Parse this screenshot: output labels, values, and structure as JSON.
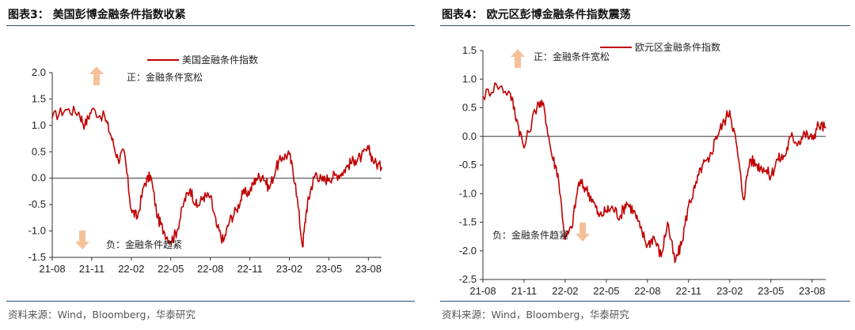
{
  "charts": [
    {
      "title": "图表3：  美国彭博金融条件指数收紧",
      "source": "资料来源：Wind，Bloomberg，华泰研究",
      "legend": "美国金融条件指数",
      "annotations": {
        "positive": "正：金融条件宽松",
        "negative": "负：金融条件趋紧"
      },
      "colors": {
        "line": "#c00000",
        "arrow": "#f5c19a",
        "axis": "#333333",
        "rule": "#1f4e79"
      }
    },
    {
      "title": "图表4：  欧元区彭博金融条件指数震荡",
      "source": "资料来源：Wind，Bloomberg，华泰研究",
      "legend": "欧元区金融条件指数",
      "annotations": {
        "positive": "正：金融条件宽松",
        "negative": "负：金融条件趋紧"
      },
      "colors": {
        "line": "#c00000",
        "arrow": "#f5c19a",
        "axis": "#333333",
        "rule": "#1f4e79"
      }
    }
  ],
  "chart_data": [
    {
      "type": "line",
      "title": "图表3：  美国彭博金融条件指数收紧",
      "xlabel": "",
      "ylabel": "",
      "x_ticks": [
        "21-08",
        "21-11",
        "22-02",
        "22-05",
        "22-08",
        "22-11",
        "23-02",
        "23-05",
        "23-08"
      ],
      "y_ticks": [
        "2.0",
        "1.5",
        "1.0",
        "0.5",
        "0.0",
        "-0.5",
        "-1.0",
        "-1.5"
      ],
      "xlim": [
        "2021-08",
        "2023-09"
      ],
      "ylim": [
        -1.5,
        2.0
      ],
      "grid": false,
      "legend_position": "top-center",
      "series": [
        {
          "name": "美国金融条件指数",
          "x": [
            "2021-08",
            "2021-09",
            "2021-10",
            "2021-10-15",
            "2021-11",
            "2021-12",
            "2021-12-15",
            "2022-01",
            "2022-01-15",
            "2022-02",
            "2022-02-15",
            "2022-03",
            "2022-03-15",
            "2022-04",
            "2022-04-15",
            "2022-05",
            "2022-05-15",
            "2022-06",
            "2022-06-15",
            "2022-07",
            "2022-07-15",
            "2022-08",
            "2022-08-15",
            "2022-09",
            "2022-09-15",
            "2022-10",
            "2022-10-15",
            "2022-11",
            "2022-11-15",
            "2022-12",
            "2022-12-15",
            "2023-01",
            "2023-01-15",
            "2023-02",
            "2023-02-15",
            "2023-03",
            "2023-03-10",
            "2023-03-20",
            "2023-04",
            "2023-04-15",
            "2023-05",
            "2023-05-15",
            "2023-06",
            "2023-06-15",
            "2023-07",
            "2023-07-15",
            "2023-08",
            "2023-08-15",
            "2023-09"
          ],
          "values": [
            1.15,
            1.3,
            1.25,
            1.0,
            1.3,
            1.15,
            0.8,
            0.35,
            0.5,
            -0.6,
            -0.75,
            -0.1,
            0.05,
            -0.75,
            -1.0,
            -1.2,
            -1.0,
            -0.45,
            -0.2,
            -0.55,
            -0.35,
            -0.35,
            -0.9,
            -1.2,
            -0.8,
            -0.6,
            -0.3,
            -0.25,
            0.0,
            0.05,
            -0.2,
            0.2,
            0.4,
            0.45,
            -0.1,
            -1.3,
            -0.6,
            -0.2,
            0.1,
            -0.05,
            0.0,
            0.05,
            0.1,
            0.25,
            0.35,
            0.4,
            0.55,
            0.3,
            0.2
          ]
        }
      ]
    },
    {
      "type": "line",
      "title": "图表4：  欧元区彭博金融条件指数震荡",
      "xlabel": "",
      "ylabel": "",
      "x_ticks": [
        "21-08",
        "21-11",
        "22-02",
        "22-05",
        "22-08",
        "22-11",
        "23-02",
        "23-05",
        "23-08"
      ],
      "y_ticks": [
        "1.5",
        "1.0",
        "0.5",
        "0.0",
        "-0.5",
        "-1.0",
        "-1.5",
        "-2.0",
        "-2.5"
      ],
      "xlim": [
        "2021-08",
        "2023-09"
      ],
      "ylim": [
        -2.5,
        1.5
      ],
      "grid": false,
      "legend_position": "top-center",
      "series": [
        {
          "name": "欧元区金融条件指数",
          "x": [
            "2021-08",
            "2021-09",
            "2021-10",
            "2021-10-15",
            "2021-11",
            "2021-12",
            "2021-12-15",
            "2022-01",
            "2022-01-15",
            "2022-02",
            "2022-02-15",
            "2022-03",
            "2022-03-15",
            "2022-04",
            "2022-04-15",
            "2022-05",
            "2022-05-15",
            "2022-06",
            "2022-06-15",
            "2022-07",
            "2022-07-15",
            "2022-08",
            "2022-08-15",
            "2022-09",
            "2022-09-15",
            "2022-10",
            "2022-10-15",
            "2022-11",
            "2022-11-15",
            "2022-12",
            "2022-12-15",
            "2023-01",
            "2023-01-15",
            "2023-02",
            "2023-02-15",
            "2023-03",
            "2023-03-15",
            "2023-04",
            "2023-04-15",
            "2023-05",
            "2023-05-15",
            "2023-06",
            "2023-06-15",
            "2023-07",
            "2023-07-15",
            "2023-08",
            "2023-08-15",
            "2023-09"
          ],
          "values": [
            0.7,
            0.9,
            0.75,
            0.3,
            -0.2,
            0.6,
            0.5,
            -0.3,
            -0.65,
            -1.8,
            -1.6,
            -0.8,
            -0.9,
            -1.1,
            -1.4,
            -1.3,
            -1.25,
            -1.4,
            -1.15,
            -1.3,
            -1.6,
            -1.9,
            -1.75,
            -2.1,
            -1.5,
            -2.2,
            -1.9,
            -1.2,
            -0.9,
            -0.5,
            -0.45,
            0.0,
            0.2,
            0.45,
            -0.1,
            -1.1,
            -0.4,
            -0.5,
            -0.55,
            -0.7,
            -0.4,
            -0.35,
            0.0,
            -0.1,
            0.05,
            -0.05,
            0.2,
            0.15
          ]
        }
      ]
    }
  ]
}
